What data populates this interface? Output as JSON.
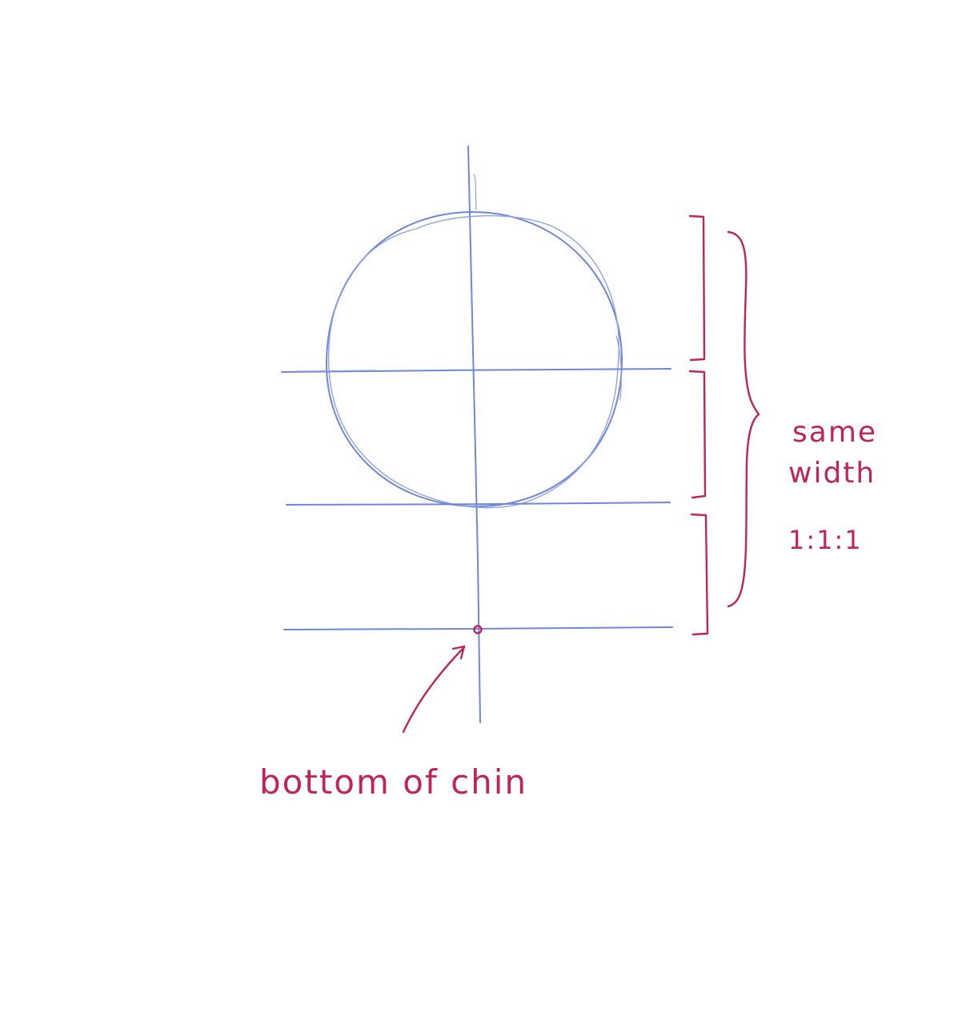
{
  "labels": {
    "same": "same",
    "width": "width",
    "ratio": "1:1:1",
    "chin": "bottom of chin"
  },
  "colors": {
    "guide_lines": "#6f86dd",
    "annotation": "#c0245a",
    "background": "#ffffff"
  }
}
